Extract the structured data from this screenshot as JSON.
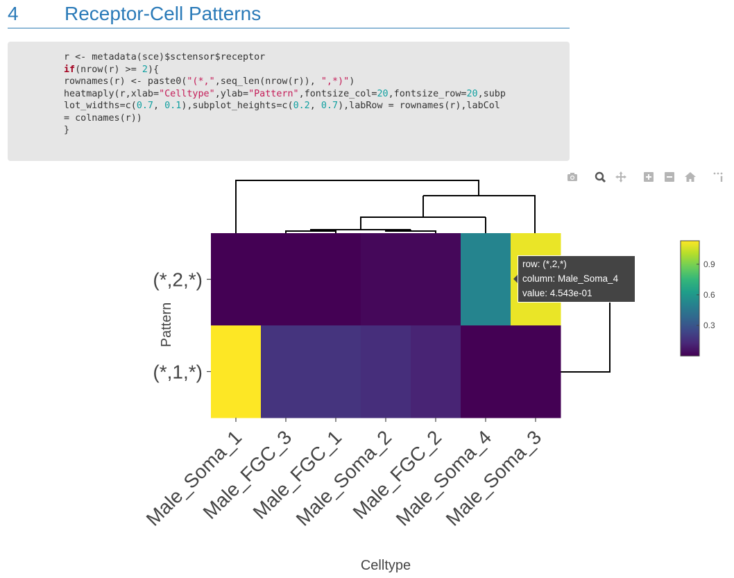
{
  "section": {
    "number": "4",
    "title": "Receptor-Cell Patterns"
  },
  "code": {
    "lines": [
      [
        {
          "t": "r <- metadata(sce)$sctensor$receptor",
          "c": ""
        }
      ],
      [
        {
          "t": "if",
          "c": "kw"
        },
        {
          "t": "(nrow(r) >= ",
          "c": ""
        },
        {
          "t": "2",
          "c": "num"
        },
        {
          "t": "){",
          "c": ""
        }
      ],
      [
        {
          "t": "rownames(r) <- paste0(",
          "c": ""
        },
        {
          "t": "\"(*,\"",
          "c": "str"
        },
        {
          "t": ",seq_len(nrow(r)), ",
          "c": ""
        },
        {
          "t": "\",*)\"",
          "c": "str"
        },
        {
          "t": ")",
          "c": ""
        }
      ],
      [
        {
          "t": "heatmaply(r,xlab=",
          "c": ""
        },
        {
          "t": "\"Celltype\"",
          "c": "str"
        },
        {
          "t": ",ylab=",
          "c": ""
        },
        {
          "t": "\"Pattern\"",
          "c": "str"
        },
        {
          "t": ",fontsize_col=",
          "c": ""
        },
        {
          "t": "20",
          "c": "num"
        },
        {
          "t": ",fontsize_row=",
          "c": ""
        },
        {
          "t": "20",
          "c": "num"
        },
        {
          "t": ",subp",
          "c": ""
        }
      ],
      [
        {
          "t": "lot_widths=c(",
          "c": ""
        },
        {
          "t": "0.7",
          "c": "num"
        },
        {
          "t": ", ",
          "c": ""
        },
        {
          "t": "0.1",
          "c": "num"
        },
        {
          "t": "),subplot_heights=c(",
          "c": ""
        },
        {
          "t": "0.2",
          "c": "num"
        },
        {
          "t": ", ",
          "c": ""
        },
        {
          "t": "0.7",
          "c": "num"
        },
        {
          "t": "),labRow = rownames(r),labCol",
          "c": ""
        }
      ],
      [
        {
          "t": "= colnames(r))",
          "c": ""
        }
      ],
      [
        {
          "t": "}",
          "c": ""
        }
      ]
    ]
  },
  "modebar": {
    "buttons": [
      "camera-icon",
      "zoom-icon",
      "pan-icon",
      "zoom-in-icon",
      "zoom-out-icon",
      "reset-axes-icon",
      "plotly-logo-icon"
    ]
  },
  "chart_data": {
    "type": "heatmap",
    "xlabel": "Celltype",
    "ylabel": "Pattern",
    "columns": [
      "Male_Soma_1",
      "Male_FGC_3",
      "Male_FGC_1",
      "Male_Soma_2",
      "Male_FGC_2",
      "Male_Soma_4",
      "Male_Soma_3"
    ],
    "rows": [
      "(*,2,*)",
      "(*,1,*)"
    ],
    "values": [
      [
        0.0,
        0.0,
        0.0,
        0.02,
        0.02,
        0.4543,
        0.97
      ],
      [
        1.0,
        0.15,
        0.15,
        0.13,
        0.1,
        0.0,
        0.0
      ]
    ],
    "colorscale": "viridis",
    "colorbar": {
      "range": [
        0,
        1.13
      ],
      "ticks": [
        0.3,
        0.6,
        0.9
      ],
      "tick_labels": [
        "0.3",
        "0.6",
        "0.9"
      ]
    },
    "column_dendrogram": true,
    "row_dendrogram": true,
    "tooltip": {
      "row_line": "row: (*,2,*)",
      "column_line": "column: Male_Soma_4",
      "value_line": "value: 4.543e-01"
    }
  }
}
